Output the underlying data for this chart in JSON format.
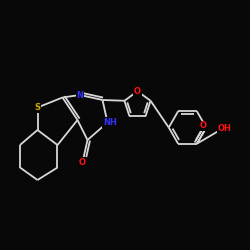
{
  "background_color": "#080808",
  "bond_color": "#d8d8d8",
  "bond_width": 1.3,
  "S_color": "#ccaa00",
  "N_color": "#3333ff",
  "O_color": "#ff1111",
  "figsize": [
    2.5,
    2.5
  ],
  "dpi": 100,
  "xlim": [
    0,
    10
  ],
  "ylim": [
    0,
    10
  ]
}
